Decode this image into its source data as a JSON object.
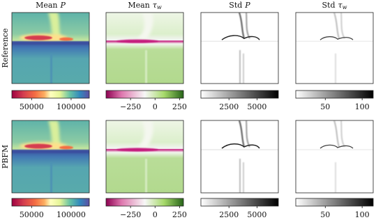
{
  "columns": [
    {
      "title": {
        "label": "Mean",
        "symbol": "P"
      },
      "colorbar": {
        "lim": [
          25000,
          123000
        ],
        "ticks": [
          50000,
          100000
        ]
      }
    },
    {
      "title": {
        "label": "Mean",
        "symbol": "τ",
        "subscript": "w"
      },
      "colorbar": {
        "lim": [
          -500,
          290
        ],
        "ticks": [
          {
            "value": -250,
            "label": "−250"
          },
          0,
          250
        ]
      }
    },
    {
      "title": {
        "label": "Std",
        "symbol": "P"
      },
      "colorbar": {
        "lim": [
          0,
          6900
        ],
        "ticks": [
          2500,
          5000
        ]
      }
    },
    {
      "title": {
        "label": "Std",
        "symbol": "τ",
        "subscript": "w"
      },
      "colorbar": {
        "lim": [
          10,
          115
        ],
        "ticks": [
          50,
          100
        ]
      }
    }
  ],
  "rows": [
    "Reference",
    "PBFM"
  ]
}
